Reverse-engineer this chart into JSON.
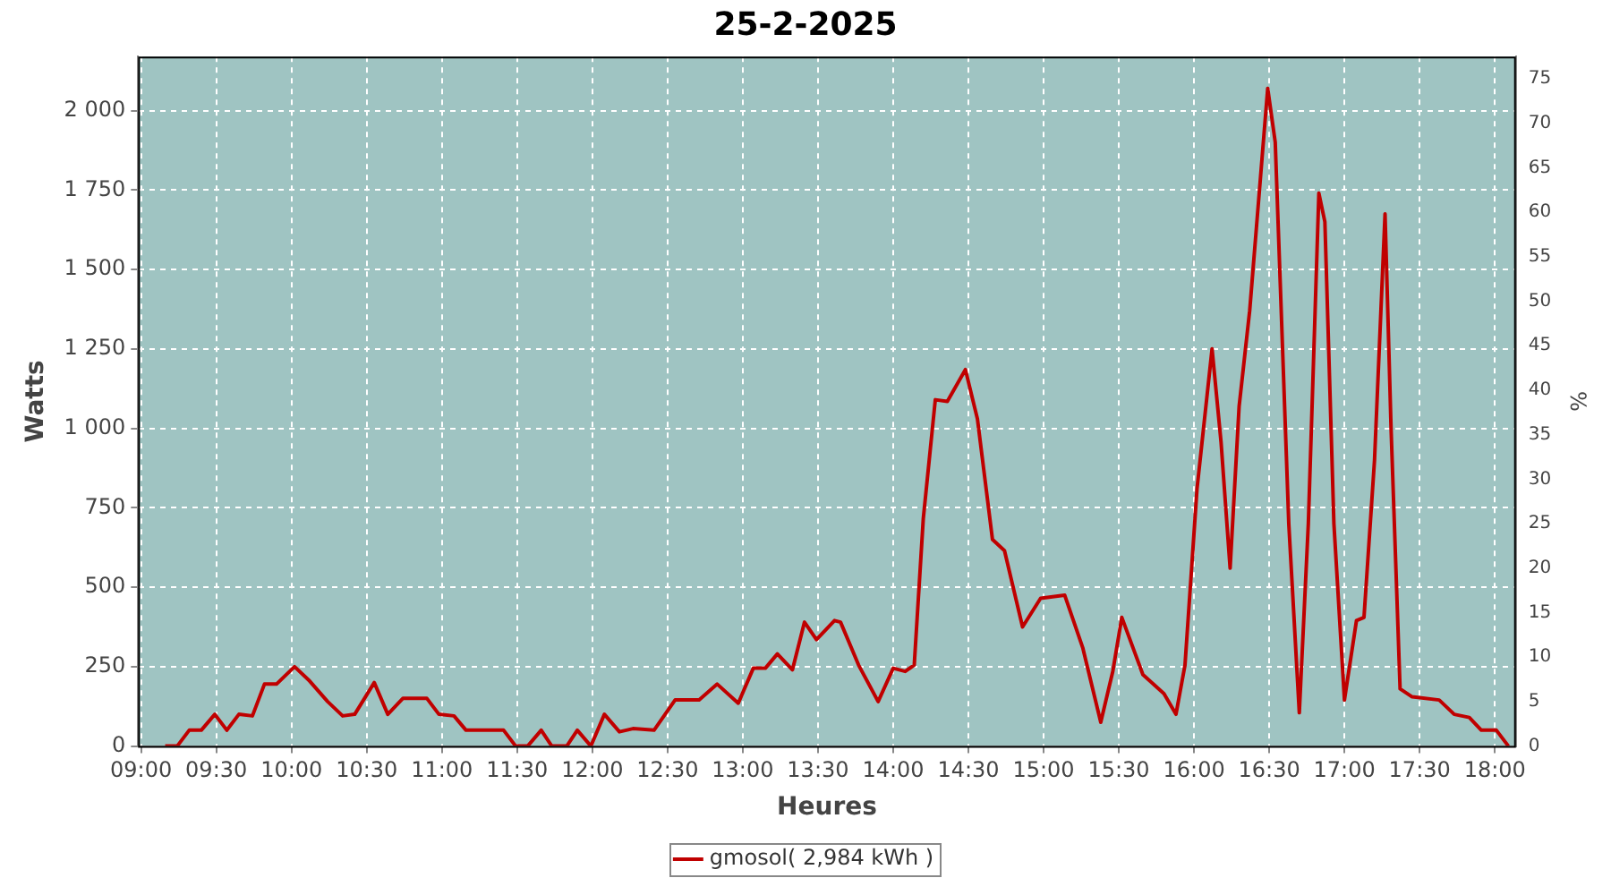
{
  "chart_data": {
    "type": "line",
    "title": "25-2-2025",
    "xlabel": "Heures",
    "ylabel": "Watts",
    "y2label": "%",
    "xlim": [
      8.98,
      18.14
    ],
    "xticks": [
      {
        "value": 9,
        "label": "09:00"
      },
      {
        "value": 9.5,
        "label": "09:30"
      },
      {
        "value": 10,
        "label": "10:00"
      },
      {
        "value": 10.5,
        "label": "10:30"
      },
      {
        "value": 11,
        "label": "11:00"
      },
      {
        "value": 11.5,
        "label": "11:30"
      },
      {
        "value": 12,
        "label": "12:00"
      },
      {
        "value": 12.5,
        "label": "12:30"
      },
      {
        "value": 13,
        "label": "13:00"
      },
      {
        "value": 13.5,
        "label": "13:30"
      },
      {
        "value": 14,
        "label": "14:00"
      },
      {
        "value": 14.5,
        "label": "14:30"
      },
      {
        "value": 15,
        "label": "15:00"
      },
      {
        "value": 15.5,
        "label": "15:30"
      },
      {
        "value": 16,
        "label": "16:00"
      },
      {
        "value": 16.5,
        "label": "16:30"
      },
      {
        "value": 17,
        "label": "17:00"
      },
      {
        "value": 17.5,
        "label": "17:30"
      },
      {
        "value": 18,
        "label": "18:00"
      }
    ],
    "ylim": [
      0,
      2170
    ],
    "yticks": [
      0,
      250,
      500,
      750,
      {
        "value": 1000,
        "label": "1 000"
      },
      {
        "value": 1250,
        "label": "1 250"
      },
      {
        "value": 1500,
        "label": "1 500"
      },
      {
        "value": 1750,
        "label": "1 750"
      },
      {
        "value": 2000,
        "label": "2 000"
      }
    ],
    "y2lim": [
      0,
      77.5
    ],
    "y2ticks": [
      0,
      5,
      10,
      15,
      20,
      25,
      30,
      35,
      40,
      45,
      50,
      55,
      60,
      65,
      70,
      75
    ],
    "grid": true,
    "legend": "bottom",
    "marker": "none",
    "line_style": "solid",
    "series": [
      {
        "name": "gmosol( 2,984 kWh )",
        "color": "#c00000",
        "x": [
          9.16,
          9.24,
          9.32,
          9.4,
          9.49,
          9.57,
          9.65,
          9.74,
          9.82,
          9.9,
          10.02,
          10.12,
          10.24,
          10.34,
          10.42,
          10.55,
          10.64,
          10.74,
          10.9,
          10.98,
          11.08,
          11.16,
          11.41,
          11.49,
          11.57,
          11.66,
          11.73,
          11.83,
          11.9,
          11.99,
          12.08,
          12.18,
          12.27,
          12.41,
          12.55,
          12.71,
          12.83,
          12.97,
          13.07,
          13.15,
          13.23,
          13.33,
          13.41,
          13.49,
          13.61,
          13.65,
          13.77,
          13.9,
          14.0,
          14.08,
          14.14,
          14.2,
          14.28,
          14.36,
          14.48,
          14.56,
          14.66,
          14.74,
          14.86,
          14.98,
          15.14,
          15.26,
          15.38,
          15.46,
          15.52,
          15.66,
          15.8,
          15.88,
          15.94,
          16.02,
          16.12,
          16.18,
          16.24,
          16.3,
          16.37,
          16.49,
          16.54,
          16.63,
          16.7,
          16.76,
          16.83,
          16.87,
          16.93,
          17.0,
          17.08,
          17.13,
          17.2,
          17.27,
          17.31,
          17.37,
          17.45,
          17.63,
          17.73,
          17.83,
          17.91,
          18.01,
          18.09
        ],
        "values": [
          0,
          0,
          50,
          50,
          100,
          50,
          100,
          95,
          195,
          195,
          250,
          205,
          140,
          95,
          100,
          200,
          100,
          150,
          150,
          100,
          95,
          50,
          50,
          0,
          0,
          50,
          0,
          0,
          50,
          0,
          100,
          45,
          55,
          50,
          145,
          145,
          195,
          135,
          245,
          245,
          290,
          240,
          390,
          335,
          395,
          390,
          255,
          140,
          245,
          235,
          255,
          715,
          1090,
          1085,
          1185,
          1030,
          650,
          615,
          375,
          465,
          475,
          310,
          75,
          235,
          405,
          225,
          165,
          100,
          255,
          810,
          1250,
          955,
          560,
          1070,
          1370,
          2070,
          1900,
          700,
          105,
          700,
          1740,
          1650,
          700,
          145,
          395,
          405,
          900,
          1675,
          1000,
          180,
          155,
          145,
          100,
          90,
          50,
          50,
          0
        ]
      }
    ]
  }
}
